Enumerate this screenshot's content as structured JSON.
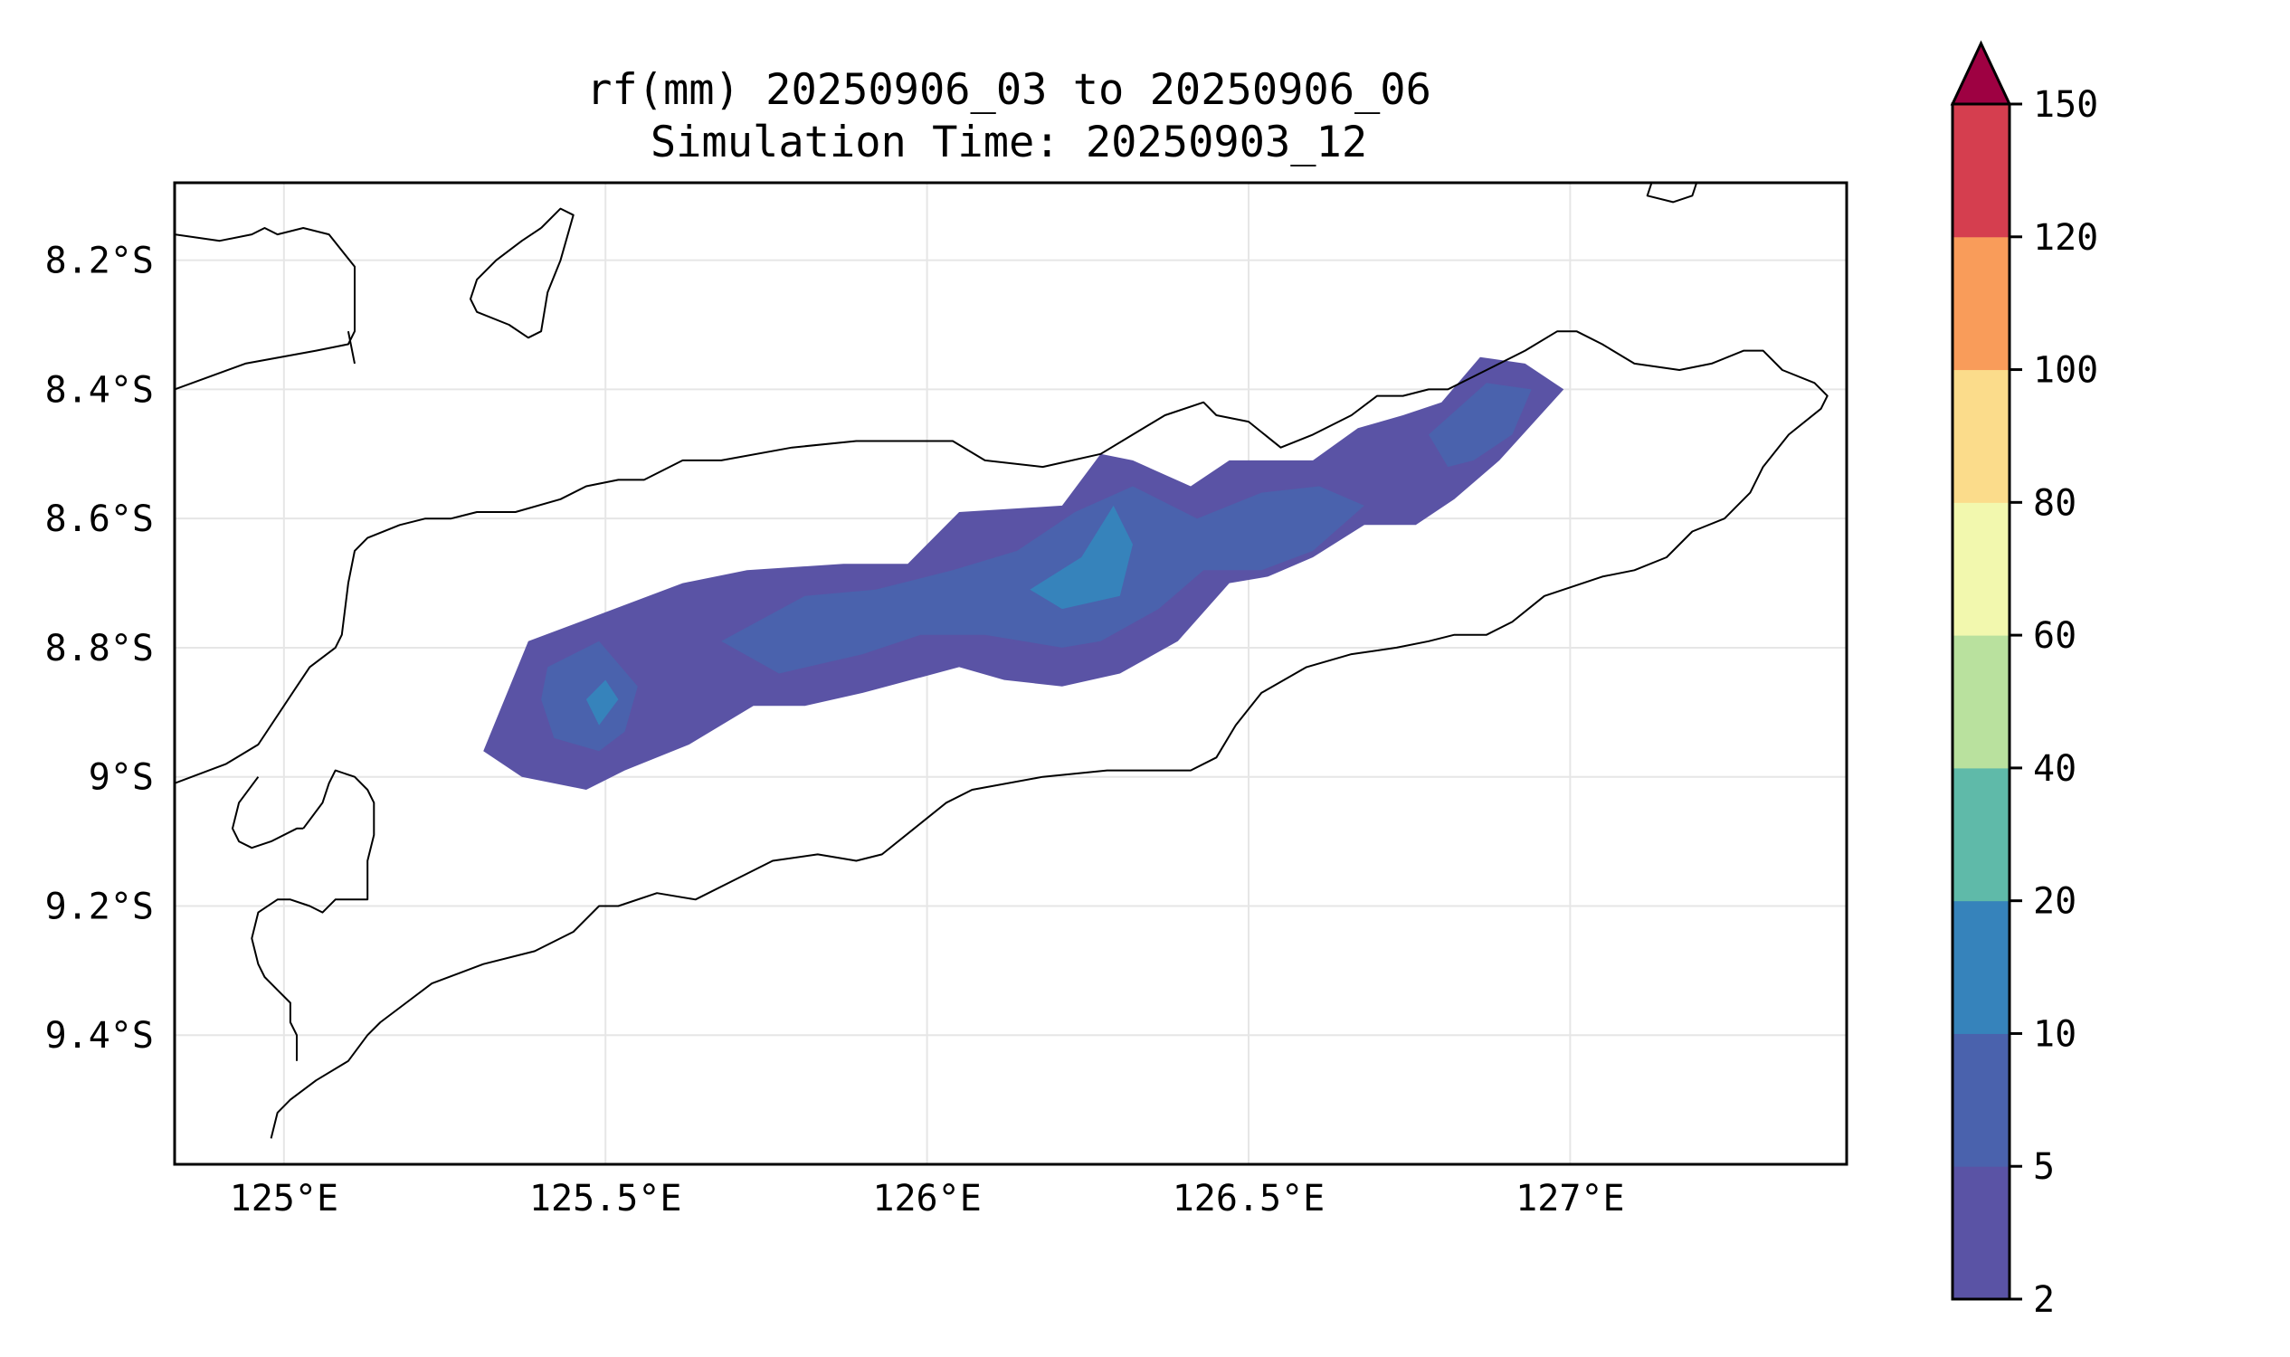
{
  "title": {
    "line1": "rf(mm) 20250906_03 to 20250906_06",
    "line2": "Simulation Time: 20250903_12"
  },
  "map": {
    "lon_range": [
      124.83,
      127.43
    ],
    "lat_range": [
      -9.6,
      -8.08
    ],
    "xticks": [
      {
        "value": 125.0,
        "label": "125°E"
      },
      {
        "value": 125.5,
        "label": "125.5°E"
      },
      {
        "value": 126.0,
        "label": "126°E"
      },
      {
        "value": 126.5,
        "label": "126.5°E"
      },
      {
        "value": 127.0,
        "label": "127°E"
      }
    ],
    "yticks": [
      {
        "value": -8.2,
        "label": "8.2°S"
      },
      {
        "value": -8.4,
        "label": "8.4°S"
      },
      {
        "value": -8.6,
        "label": "8.6°S"
      },
      {
        "value": -8.8,
        "label": "8.8°S"
      },
      {
        "value": -9.0,
        "label": "9°S"
      },
      {
        "value": -9.2,
        "label": "9.2°S"
      },
      {
        "value": -9.4,
        "label": "9.4°S"
      }
    ],
    "gridlines": true
  },
  "colorbar": {
    "levels": [
      "2",
      "5",
      "10",
      "20",
      "40",
      "60",
      "80",
      "100",
      "120",
      "150"
    ],
    "colors": [
      "#5a53a5",
      "#4a62ad",
      "#3683bb",
      "#5fbaa9",
      "#b9e19e",
      "#f2f8ae",
      "#fbdc8b",
      "#f99c5a",
      "#d53e4f"
    ],
    "extend_color": "#9e0142",
    "extend": "max"
  },
  "chart_data": {
    "type": "heatmap",
    "variable": "rf(mm)",
    "levels": [
      2,
      5,
      10,
      20,
      40,
      60,
      80,
      100,
      120,
      150
    ],
    "rain_band": [
      {
        "range": "2-5",
        "polygon": [
          [
            125.31,
            -8.96
          ],
          [
            125.38,
            -8.79
          ],
          [
            125.62,
            -8.7
          ],
          [
            125.72,
            -8.68
          ],
          [
            125.87,
            -8.67
          ],
          [
            125.97,
            -8.67
          ],
          [
            126.05,
            -8.59
          ],
          [
            126.21,
            -8.58
          ],
          [
            126.27,
            -8.5
          ],
          [
            126.32,
            -8.51
          ],
          [
            126.41,
            -8.55
          ],
          [
            126.47,
            -8.51
          ],
          [
            126.6,
            -8.51
          ],
          [
            126.67,
            -8.46
          ],
          [
            126.74,
            -8.44
          ],
          [
            126.8,
            -8.42
          ],
          [
            126.86,
            -8.35
          ],
          [
            126.93,
            -8.36
          ],
          [
            126.99,
            -8.4
          ],
          [
            126.89,
            -8.51
          ],
          [
            126.82,
            -8.57
          ],
          [
            126.79,
            -8.59
          ],
          [
            126.76,
            -8.61
          ],
          [
            126.68,
            -8.61
          ],
          [
            126.6,
            -8.66
          ],
          [
            126.53,
            -8.69
          ],
          [
            126.47,
            -8.7
          ],
          [
            126.39,
            -8.79
          ],
          [
            126.3,
            -8.84
          ],
          [
            126.21,
            -8.86
          ],
          [
            126.12,
            -8.85
          ],
          [
            126.05,
            -8.83
          ],
          [
            125.9,
            -8.87
          ],
          [
            125.81,
            -8.89
          ],
          [
            125.73,
            -8.89
          ],
          [
            125.63,
            -8.95
          ],
          [
            125.53,
            -8.99
          ],
          [
            125.47,
            -9.02
          ],
          [
            125.37,
            -9.0
          ]
        ]
      },
      {
        "range": "5-10",
        "polygon": [
          [
            125.41,
            -8.83
          ],
          [
            125.49,
            -8.79
          ],
          [
            125.55,
            -8.86
          ],
          [
            125.53,
            -8.93
          ],
          [
            125.49,
            -8.96
          ],
          [
            125.42,
            -8.94
          ],
          [
            125.4,
            -8.88
          ]
        ]
      },
      {
        "range": "5-10",
        "polygon": [
          [
            125.68,
            -8.79
          ],
          [
            125.81,
            -8.72
          ],
          [
            125.92,
            -8.71
          ],
          [
            126.04,
            -8.68
          ],
          [
            126.14,
            -8.65
          ],
          [
            126.23,
            -8.59
          ],
          [
            126.32,
            -8.55
          ],
          [
            126.42,
            -8.6
          ],
          [
            126.52,
            -8.56
          ],
          [
            126.61,
            -8.55
          ],
          [
            126.68,
            -8.58
          ],
          [
            126.6,
            -8.65
          ],
          [
            126.52,
            -8.68
          ],
          [
            126.43,
            -8.68
          ],
          [
            126.36,
            -8.74
          ],
          [
            126.27,
            -8.79
          ],
          [
            126.21,
            -8.8
          ],
          [
            126.09,
            -8.78
          ],
          [
            125.99,
            -8.78
          ],
          [
            125.9,
            -8.81
          ],
          [
            125.77,
            -8.84
          ]
        ]
      },
      {
        "range": "5-10",
        "polygon": [
          [
            126.78,
            -8.47
          ],
          [
            126.87,
            -8.39
          ],
          [
            126.94,
            -8.4
          ],
          [
            126.91,
            -8.47
          ],
          [
            126.85,
            -8.51
          ],
          [
            126.81,
            -8.52
          ]
        ]
      },
      {
        "range": "10-20",
        "polygon": [
          [
            125.47,
            -8.88
          ],
          [
            125.5,
            -8.85
          ],
          [
            125.52,
            -8.88
          ],
          [
            125.49,
            -8.92
          ]
        ]
      },
      {
        "range": "10-20",
        "polygon": [
          [
            126.16,
            -8.71
          ],
          [
            126.24,
            -8.66
          ],
          [
            126.29,
            -8.58
          ],
          [
            126.32,
            -8.64
          ],
          [
            126.3,
            -8.72
          ],
          [
            126.21,
            -8.74
          ]
        ]
      }
    ]
  },
  "coastlines": [
    [
      [
        124.83,
        -8.16
      ],
      [
        124.9,
        -8.17
      ],
      [
        124.95,
        -8.16
      ],
      [
        124.97,
        -8.15
      ],
      [
        124.99,
        -8.16
      ],
      [
        125.03,
        -8.15
      ],
      [
        125.07,
        -8.16
      ],
      [
        125.11,
        -8.21
      ],
      [
        125.11,
        -8.31
      ],
      [
        125.1,
        -8.33
      ],
      [
        125.05,
        -8.34
      ],
      [
        124.94,
        -8.36
      ],
      [
        124.83,
        -8.4
      ]
    ],
    [
      [
        125.1,
        -8.31
      ],
      [
        125.11,
        -8.36
      ]
    ],
    [
      [
        125.4,
        -8.15
      ],
      [
        125.43,
        -8.12
      ],
      [
        125.45,
        -8.13
      ],
      [
        125.43,
        -8.2
      ],
      [
        125.41,
        -8.25
      ],
      [
        125.4,
        -8.31
      ],
      [
        125.38,
        -8.32
      ],
      [
        125.35,
        -8.3
      ],
      [
        125.3,
        -8.28
      ],
      [
        125.29,
        -8.26
      ],
      [
        125.3,
        -8.23
      ],
      [
        125.33,
        -8.2
      ],
      [
        125.37,
        -8.17
      ],
      [
        125.4,
        -8.15
      ]
    ],
    [
      [
        127.13,
        -8.07
      ],
      [
        127.12,
        -8.1
      ],
      [
        127.16,
        -8.11
      ],
      [
        127.19,
        -8.1
      ],
      [
        127.2,
        -8.07
      ]
    ],
    [
      [
        124.83,
        -9.01
      ],
      [
        124.91,
        -8.98
      ],
      [
        124.96,
        -8.95
      ],
      [
        125.02,
        -8.86
      ],
      [
        125.04,
        -8.83
      ],
      [
        125.08,
        -8.8
      ],
      [
        125.09,
        -8.78
      ],
      [
        125.1,
        -8.7
      ],
      [
        125.11,
        -8.65
      ],
      [
        125.13,
        -8.63
      ],
      [
        125.18,
        -8.61
      ],
      [
        125.22,
        -8.6
      ],
      [
        125.26,
        -8.6
      ],
      [
        125.3,
        -8.59
      ],
      [
        125.36,
        -8.59
      ],
      [
        125.43,
        -8.57
      ],
      [
        125.47,
        -8.55
      ],
      [
        125.52,
        -8.54
      ],
      [
        125.56,
        -8.54
      ],
      [
        125.62,
        -8.51
      ],
      [
        125.68,
        -8.51
      ],
      [
        125.79,
        -8.49
      ],
      [
        125.89,
        -8.48
      ],
      [
        126.04,
        -8.48
      ],
      [
        126.09,
        -8.51
      ],
      [
        126.18,
        -8.52
      ],
      [
        126.27,
        -8.5
      ],
      [
        126.32,
        -8.47
      ],
      [
        126.37,
        -8.44
      ],
      [
        126.43,
        -8.42
      ],
      [
        126.45,
        -8.44
      ],
      [
        126.5,
        -8.45
      ],
      [
        126.55,
        -8.49
      ],
      [
        126.6,
        -8.47
      ],
      [
        126.66,
        -8.44
      ],
      [
        126.7,
        -8.41
      ],
      [
        126.74,
        -8.41
      ],
      [
        126.78,
        -8.4
      ],
      [
        126.81,
        -8.4
      ],
      [
        126.87,
        -8.37
      ],
      [
        126.93,
        -8.34
      ],
      [
        126.98,
        -8.31
      ],
      [
        127.01,
        -8.31
      ],
      [
        127.05,
        -8.33
      ],
      [
        127.1,
        -8.36
      ],
      [
        127.17,
        -8.37
      ],
      [
        127.22,
        -8.36
      ],
      [
        127.27,
        -8.34
      ],
      [
        127.3,
        -8.34
      ],
      [
        127.33,
        -8.37
      ],
      [
        127.38,
        -8.39
      ],
      [
        127.4,
        -8.41
      ],
      [
        127.39,
        -8.43
      ],
      [
        127.34,
        -8.47
      ],
      [
        127.3,
        -8.52
      ],
      [
        127.28,
        -8.56
      ],
      [
        127.24,
        -8.6
      ],
      [
        127.19,
        -8.62
      ],
      [
        127.15,
        -8.66
      ],
      [
        127.1,
        -8.68
      ],
      [
        127.05,
        -8.69
      ],
      [
        126.96,
        -8.72
      ],
      [
        126.91,
        -8.76
      ],
      [
        126.87,
        -8.78
      ],
      [
        126.82,
        -8.78
      ],
      [
        126.78,
        -8.79
      ],
      [
        126.73,
        -8.8
      ],
      [
        126.66,
        -8.81
      ],
      [
        126.59,
        -8.83
      ],
      [
        126.52,
        -8.87
      ],
      [
        126.48,
        -8.92
      ],
      [
        126.45,
        -8.97
      ],
      [
        126.41,
        -8.99
      ],
      [
        126.36,
        -8.99
      ],
      [
        126.28,
        -8.99
      ],
      [
        126.18,
        -9.0
      ],
      [
        126.07,
        -9.02
      ],
      [
        126.03,
        -9.04
      ],
      [
        125.98,
        -9.08
      ],
      [
        125.93,
        -9.12
      ],
      [
        125.89,
        -9.13
      ],
      [
        125.83,
        -9.12
      ],
      [
        125.76,
        -9.13
      ],
      [
        125.7,
        -9.16
      ],
      [
        125.64,
        -9.19
      ],
      [
        125.58,
        -9.18
      ],
      [
        125.52,
        -9.2
      ],
      [
        125.49,
        -9.2
      ],
      [
        125.45,
        -9.24
      ],
      [
        125.39,
        -9.27
      ],
      [
        125.31,
        -9.29
      ],
      [
        125.23,
        -9.32
      ],
      [
        125.19,
        -9.35
      ],
      [
        125.15,
        -9.38
      ],
      [
        125.13,
        -9.4
      ],
      [
        125.1,
        -9.44
      ],
      [
        125.05,
        -9.47
      ],
      [
        125.01,
        -9.5
      ],
      [
        124.99,
        -9.52
      ],
      [
        124.98,
        -9.56
      ]
    ],
    [
      [
        125.03,
        -9.08
      ],
      [
        125.06,
        -9.04
      ],
      [
        125.07,
        -9.01
      ],
      [
        125.08,
        -8.99
      ],
      [
        125.11,
        -9.0
      ],
      [
        125.13,
        -9.02
      ],
      [
        125.14,
        -9.04
      ],
      [
        125.14,
        -9.09
      ],
      [
        125.13,
        -9.13
      ],
      [
        125.13,
        -9.17
      ],
      [
        125.13,
        -9.19
      ],
      [
        125.11,
        -9.19
      ],
      [
        125.08,
        -9.19
      ],
      [
        125.06,
        -9.21
      ],
      [
        125.04,
        -9.2
      ],
      [
        125.01,
        -9.19
      ],
      [
        124.99,
        -9.19
      ],
      [
        124.96,
        -9.21
      ],
      [
        124.95,
        -9.25
      ],
      [
        124.96,
        -9.29
      ],
      [
        124.97,
        -9.31
      ],
      [
        124.99,
        -9.33
      ],
      [
        125.01,
        -9.35
      ],
      [
        125.01,
        -9.38
      ],
      [
        125.02,
        -9.4
      ],
      [
        125.02,
        -9.44
      ]
    ],
    [
      [
        124.96,
        -9.0
      ],
      [
        124.93,
        -9.04
      ],
      [
        124.92,
        -9.08
      ],
      [
        124.93,
        -9.1
      ],
      [
        124.95,
        -9.11
      ],
      [
        124.98,
        -9.1
      ],
      [
        125.02,
        -9.08
      ],
      [
        125.03,
        -9.08
      ]
    ]
  ]
}
